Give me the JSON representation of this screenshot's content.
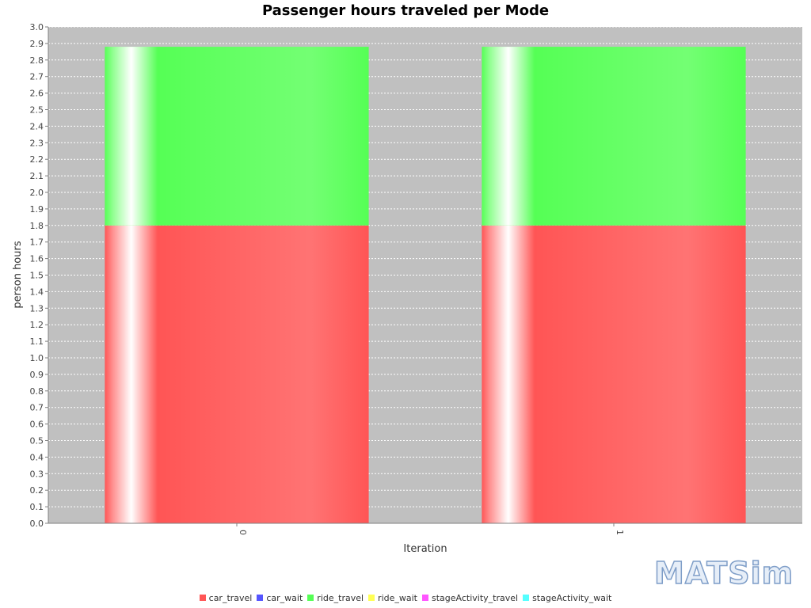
{
  "chart_data": {
    "type": "bar",
    "stacked": true,
    "title": "Passenger hours traveled per Mode",
    "xlabel": "Iteration",
    "ylabel": "person hours",
    "categories": [
      "0",
      "1"
    ],
    "ylim": [
      0.0,
      3.0
    ],
    "ytick_step": 0.1,
    "grid": true,
    "legend_position": "bottom",
    "series": [
      {
        "name": "car_travel",
        "values": [
          1.8,
          1.8
        ],
        "color": "#ff5555"
      },
      {
        "name": "car_wait",
        "values": [
          0,
          0
        ],
        "color": "#5555ff"
      },
      {
        "name": "ride_travel",
        "values": [
          1.08,
          1.08
        ],
        "color": "#55ff55"
      },
      {
        "name": "ride_wait",
        "values": [
          0,
          0
        ],
        "color": "#ffff55"
      },
      {
        "name": "stageActivity_travel",
        "values": [
          0,
          0
        ],
        "color": "#ff55ff"
      },
      {
        "name": "stageActivity_wait",
        "values": [
          0,
          0
        ],
        "color": "#55ffff"
      }
    ]
  },
  "logo_text": "MATSim"
}
